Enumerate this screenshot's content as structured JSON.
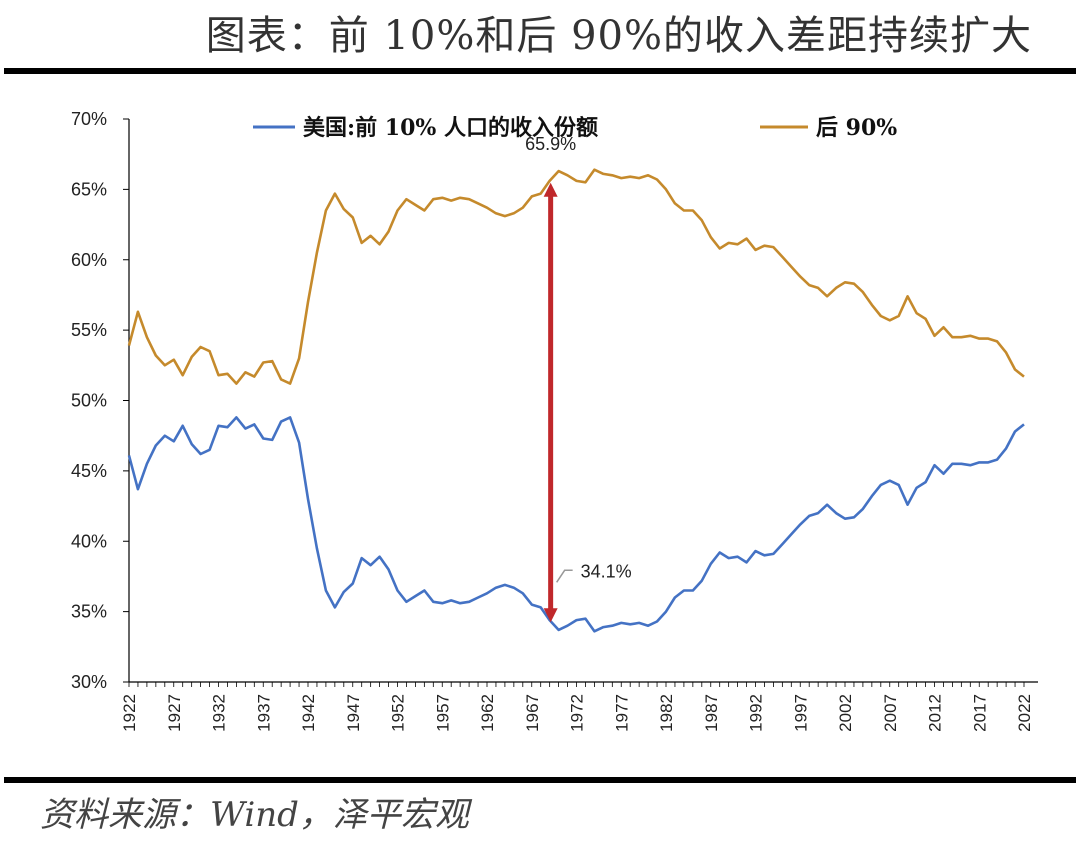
{
  "header": {
    "title": "图表：前 10%和后 90%的收入差距持续扩大"
  },
  "footer": {
    "source": "资料来源：Wind，泽平宏观"
  },
  "colors": {
    "top10": "#4472C4",
    "bottom90": "#C58A2C",
    "arrow": "#C0282B"
  },
  "chart_data": {
    "type": "line",
    "ylim": [
      0.3,
      0.7
    ],
    "y_ticks": [
      "30%",
      "35%",
      "40%",
      "45%",
      "50%",
      "55%",
      "60%",
      "65%",
      "70%"
    ],
    "xlim": [
      1922,
      2022
    ],
    "x_ticks": [
      "1922",
      "1927",
      "1932",
      "1937",
      "1942",
      "1947",
      "1952",
      "1957",
      "1962",
      "1967",
      "1972",
      "1977",
      "1982",
      "1987",
      "1992",
      "1997",
      "2002",
      "2007",
      "2012",
      "2017",
      "2022"
    ],
    "legend_position": "top",
    "grid": false,
    "series": [
      {
        "name": "美国:前 10% 人口的收入份额",
        "color": "#4472C4",
        "points": [
          [
            1922,
            0.461
          ],
          [
            1923,
            0.437
          ],
          [
            1924,
            0.455
          ],
          [
            1925,
            0.468
          ],
          [
            1926,
            0.475
          ],
          [
            1927,
            0.471
          ],
          [
            1928,
            0.482
          ],
          [
            1929,
            0.469
          ],
          [
            1930,
            0.462
          ],
          [
            1931,
            0.465
          ],
          [
            1932,
            0.482
          ],
          [
            1933,
            0.481
          ],
          [
            1934,
            0.488
          ],
          [
            1935,
            0.48
          ],
          [
            1936,
            0.483
          ],
          [
            1937,
            0.473
          ],
          [
            1938,
            0.472
          ],
          [
            1939,
            0.485
          ],
          [
            1940,
            0.488
          ],
          [
            1941,
            0.47
          ],
          [
            1942,
            0.43
          ],
          [
            1943,
            0.395
          ],
          [
            1944,
            0.365
          ],
          [
            1945,
            0.353
          ],
          [
            1946,
            0.364
          ],
          [
            1947,
            0.37
          ],
          [
            1948,
            0.388
          ],
          [
            1949,
            0.383
          ],
          [
            1950,
            0.389
          ],
          [
            1951,
            0.38
          ],
          [
            1952,
            0.365
          ],
          [
            1953,
            0.357
          ],
          [
            1954,
            0.361
          ],
          [
            1955,
            0.365
          ],
          [
            1956,
            0.357
          ],
          [
            1957,
            0.356
          ],
          [
            1958,
            0.358
          ],
          [
            1959,
            0.356
          ],
          [
            1960,
            0.357
          ],
          [
            1961,
            0.36
          ],
          [
            1962,
            0.363
          ],
          [
            1963,
            0.367
          ],
          [
            1964,
            0.369
          ],
          [
            1965,
            0.367
          ],
          [
            1966,
            0.363
          ],
          [
            1967,
            0.355
          ],
          [
            1968,
            0.353
          ],
          [
            1969,
            0.344
          ],
          [
            1970,
            0.337
          ],
          [
            1971,
            0.34
          ],
          [
            1972,
            0.344
          ],
          [
            1973,
            0.345
          ],
          [
            1974,
            0.336
          ],
          [
            1975,
            0.339
          ],
          [
            1976,
            0.34
          ],
          [
            1977,
            0.342
          ],
          [
            1978,
            0.341
          ],
          [
            1979,
            0.342
          ],
          [
            1980,
            0.34
          ],
          [
            1981,
            0.343
          ],
          [
            1982,
            0.35
          ],
          [
            1983,
            0.36
          ],
          [
            1984,
            0.365
          ],
          [
            1985,
            0.365
          ],
          [
            1986,
            0.372
          ],
          [
            1987,
            0.384
          ],
          [
            1988,
            0.392
          ],
          [
            1989,
            0.388
          ],
          [
            1990,
            0.389
          ],
          [
            1991,
            0.385
          ],
          [
            1992,
            0.393
          ],
          [
            1993,
            0.39
          ],
          [
            1994,
            0.391
          ],
          [
            1995,
            0.398
          ],
          [
            1996,
            0.405
          ],
          [
            1997,
            0.412
          ],
          [
            1998,
            0.418
          ],
          [
            1999,
            0.42
          ],
          [
            2000,
            0.426
          ],
          [
            2001,
            0.42
          ],
          [
            2002,
            0.416
          ],
          [
            2003,
            0.417
          ],
          [
            2004,
            0.423
          ],
          [
            2005,
            0.432
          ],
          [
            2006,
            0.44
          ],
          [
            2007,
            0.443
          ],
          [
            2008,
            0.44
          ],
          [
            2009,
            0.426
          ],
          [
            2010,
            0.438
          ],
          [
            2011,
            0.442
          ],
          [
            2012,
            0.454
          ],
          [
            2013,
            0.448
          ],
          [
            2014,
            0.455
          ],
          [
            2015,
            0.455
          ],
          [
            2016,
            0.454
          ],
          [
            2017,
            0.456
          ],
          [
            2018,
            0.456
          ],
          [
            2019,
            0.458
          ],
          [
            2020,
            0.466
          ],
          [
            2021,
            0.478
          ],
          [
            2022,
            0.483
          ]
        ]
      },
      {
        "name": "后 90%",
        "color": "#C58A2C",
        "points": [
          [
            1922,
            0.539
          ],
          [
            1923,
            0.563
          ],
          [
            1924,
            0.545
          ],
          [
            1925,
            0.532
          ],
          [
            1926,
            0.525
          ],
          [
            1927,
            0.529
          ],
          [
            1928,
            0.518
          ],
          [
            1929,
            0.531
          ],
          [
            1930,
            0.538
          ],
          [
            1931,
            0.535
          ],
          [
            1932,
            0.518
          ],
          [
            1933,
            0.519
          ],
          [
            1934,
            0.512
          ],
          [
            1935,
            0.52
          ],
          [
            1936,
            0.517
          ],
          [
            1937,
            0.527
          ],
          [
            1938,
            0.528
          ],
          [
            1939,
            0.515
          ],
          [
            1940,
            0.512
          ],
          [
            1941,
            0.53
          ],
          [
            1942,
            0.57
          ],
          [
            1943,
            0.605
          ],
          [
            1944,
            0.635
          ],
          [
            1945,
            0.647
          ],
          [
            1946,
            0.636
          ],
          [
            1947,
            0.63
          ],
          [
            1948,
            0.612
          ],
          [
            1949,
            0.617
          ],
          [
            1950,
            0.611
          ],
          [
            1951,
            0.62
          ],
          [
            1952,
            0.635
          ],
          [
            1953,
            0.643
          ],
          [
            1954,
            0.639
          ],
          [
            1955,
            0.635
          ],
          [
            1956,
            0.643
          ],
          [
            1957,
            0.644
          ],
          [
            1958,
            0.642
          ],
          [
            1959,
            0.644
          ],
          [
            1960,
            0.643
          ],
          [
            1961,
            0.64
          ],
          [
            1962,
            0.637
          ],
          [
            1963,
            0.633
          ],
          [
            1964,
            0.631
          ],
          [
            1965,
            0.633
          ],
          [
            1966,
            0.637
          ],
          [
            1967,
            0.645
          ],
          [
            1968,
            0.647
          ],
          [
            1969,
            0.656
          ],
          [
            1970,
            0.663
          ],
          [
            1971,
            0.66
          ],
          [
            1972,
            0.656
          ],
          [
            1973,
            0.655
          ],
          [
            1974,
            0.664
          ],
          [
            1975,
            0.661
          ],
          [
            1976,
            0.66
          ],
          [
            1977,
            0.658
          ],
          [
            1978,
            0.659
          ],
          [
            1979,
            0.658
          ],
          [
            1980,
            0.66
          ],
          [
            1981,
            0.657
          ],
          [
            1982,
            0.65
          ],
          [
            1983,
            0.64
          ],
          [
            1984,
            0.635
          ],
          [
            1985,
            0.635
          ],
          [
            1986,
            0.628
          ],
          [
            1987,
            0.616
          ],
          [
            1988,
            0.608
          ],
          [
            1989,
            0.612
          ],
          [
            1990,
            0.611
          ],
          [
            1991,
            0.615
          ],
          [
            1992,
            0.607
          ],
          [
            1993,
            0.61
          ],
          [
            1994,
            0.609
          ],
          [
            1995,
            0.602
          ],
          [
            1996,
            0.595
          ],
          [
            1997,
            0.588
          ],
          [
            1998,
            0.582
          ],
          [
            1999,
            0.58
          ],
          [
            2000,
            0.574
          ],
          [
            2001,
            0.58
          ],
          [
            2002,
            0.584
          ],
          [
            2003,
            0.583
          ],
          [
            2004,
            0.577
          ],
          [
            2005,
            0.568
          ],
          [
            2006,
            0.56
          ],
          [
            2007,
            0.557
          ],
          [
            2008,
            0.56
          ],
          [
            2009,
            0.574
          ],
          [
            2010,
            0.562
          ],
          [
            2011,
            0.558
          ],
          [
            2012,
            0.546
          ],
          [
            2013,
            0.552
          ],
          [
            2014,
            0.545
          ],
          [
            2015,
            0.545
          ],
          [
            2016,
            0.546
          ],
          [
            2017,
            0.544
          ],
          [
            2018,
            0.544
          ],
          [
            2019,
            0.542
          ],
          [
            2020,
            0.534
          ],
          [
            2021,
            0.522
          ],
          [
            2022,
            0.517
          ]
        ]
      }
    ],
    "annotations": [
      {
        "text": "65.9%",
        "x": 1969,
        "y": 0.659
      },
      {
        "text": "34.1%",
        "x": 1969,
        "y": 0.341
      }
    ]
  }
}
